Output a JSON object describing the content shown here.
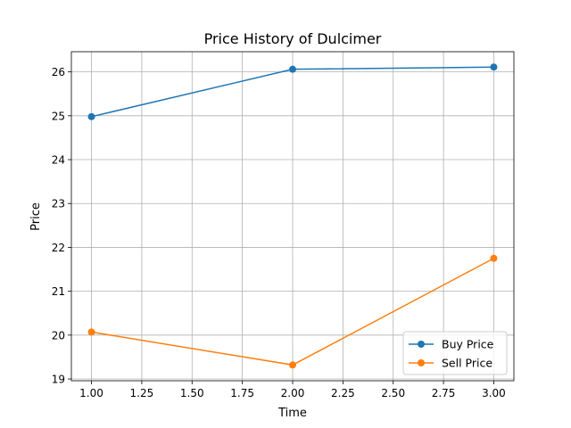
{
  "chart_data": {
    "type": "line",
    "title": "Price History of Dulcimer",
    "xlabel": "Time",
    "ylabel": "Price",
    "x": [
      1,
      2,
      3
    ],
    "xlim": [
      0.9,
      3.1
    ],
    "ylim": [
      18.96,
      26.46
    ],
    "xticks": [
      1.0,
      1.25,
      1.5,
      1.75,
      2.0,
      2.25,
      2.5,
      2.75,
      3.0
    ],
    "xtick_labels": [
      "1.00",
      "1.25",
      "1.50",
      "1.75",
      "2.00",
      "2.25",
      "2.50",
      "2.75",
      "3.00"
    ],
    "yticks": [
      19,
      20,
      21,
      22,
      23,
      24,
      25,
      26
    ],
    "ytick_labels": [
      "19",
      "20",
      "21",
      "22",
      "23",
      "24",
      "25",
      "26"
    ],
    "grid": true,
    "legend_position": "lower right",
    "series": [
      {
        "name": "Buy Price",
        "color": "#1f77b4",
        "marker": "circle",
        "values": [
          24.98,
          26.06,
          26.11
        ]
      },
      {
        "name": "Sell Price",
        "color": "#ff7f0e",
        "marker": "circle",
        "values": [
          20.07,
          19.32,
          21.75
        ]
      }
    ]
  }
}
